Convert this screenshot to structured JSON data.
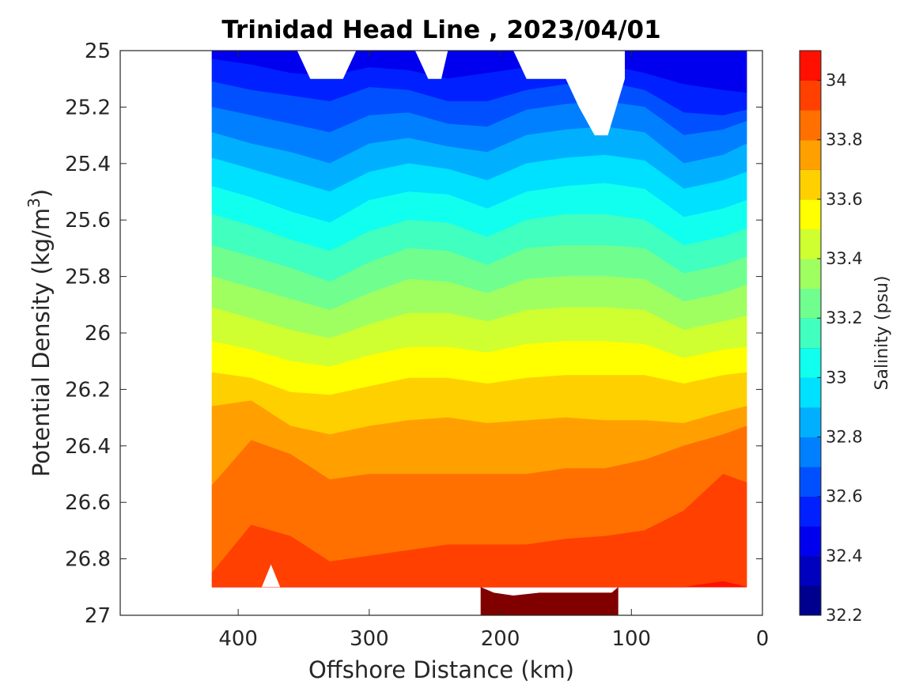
{
  "chart_data": {
    "type": "contour",
    "title": "Trinidad Head Line , 2023/04/01",
    "xlabel": "Offshore Distance (km)",
    "ylabel": "Potential Density (kg/m",
    "ylabel_superscript": "3",
    "ylabel_close": ")",
    "xlim": [
      490,
      0
    ],
    "x_reversed": true,
    "ylim": [
      25,
      27
    ],
    "y_reversed": true,
    "x_ticks": [
      400,
      300,
      200,
      100,
      0
    ],
    "x_tick_labels": [
      "400",
      "300",
      "200",
      "100",
      "0"
    ],
    "y_ticks": [
      25,
      25.2,
      25.4,
      25.6,
      25.8,
      26,
      26.2,
      26.4,
      26.6,
      26.8,
      27
    ],
    "y_tick_labels": [
      "25",
      "25.2",
      "25.4",
      "25.6",
      "25.8",
      "26",
      "26.2",
      "26.4",
      "26.6",
      "26.8",
      "27"
    ],
    "grid": false,
    "colorbar": {
      "label": "Salinity (psu)",
      "range": [
        32.2,
        34.1
      ],
      "levels": [
        32.2,
        32.3,
        32.4,
        32.5,
        32.6,
        32.7,
        32.8,
        32.9,
        33.0,
        33.1,
        33.2,
        33.3,
        33.4,
        33.5,
        33.6,
        33.7,
        33.8,
        33.9,
        34.0,
        34.1
      ],
      "tick_values": [
        32.2,
        32.4,
        32.6,
        32.8,
        33,
        33.2,
        33.4,
        33.6,
        33.8,
        34
      ],
      "tick_labels": [
        "32.2",
        "32.4",
        "32.6",
        "32.8",
        "33",
        "33.2",
        "33.4",
        "33.6",
        "33.8",
        "34"
      ],
      "colors": [
        "#00008f",
        "#0000bf",
        "#0000ef",
        "#0020ff",
        "#0050ff",
        "#0080ff",
        "#00b0ff",
        "#00e0ff",
        "#10ffef",
        "#40ffbf",
        "#70ff8f",
        "#a0ff60",
        "#cfff30",
        "#ffff00",
        "#ffd000",
        "#ffa000",
        "#ff7000",
        "#ff4000",
        "#ff1000",
        "#df0000",
        "#af0000",
        "#800000"
      ]
    },
    "data_x_range": [
      420,
      12
    ],
    "data_y_range": [
      25,
      26.9
    ],
    "stations_x": [
      420,
      390,
      360,
      330,
      300,
      270,
      240,
      210,
      180,
      150,
      120,
      90,
      60,
      30,
      12
    ],
    "boundaries": [
      {
        "upper": 32.3,
        "depth": [
          25.0,
          25.0,
          25.0,
          25.0,
          25.0,
          25.0,
          25.0,
          25.0,
          25.0,
          25.0,
          25.0,
          25.0,
          25.0,
          25.0,
          25.0
        ]
      },
      {
        "upper": 32.4,
        "depth": [
          25.0,
          25.0,
          25.0,
          25.0,
          25.0,
          25.0,
          25.0,
          25.0,
          25.0,
          25.0,
          25.0,
          25.0,
          25.0,
          25.0,
          25.0
        ]
      },
      {
        "upper": 32.5,
        "depth": [
          25.03,
          25.05,
          25.08,
          25.09,
          25.06,
          25.07,
          25.1,
          25.08,
          25.06,
          25.05,
          25.05,
          25.08,
          25.12,
          25.14,
          25.15
        ]
      },
      {
        "upper": 32.6,
        "depth": [
          25.11,
          25.14,
          25.16,
          25.18,
          25.13,
          25.14,
          25.18,
          25.18,
          25.14,
          25.12,
          25.11,
          25.14,
          25.22,
          25.23,
          25.21
        ]
      },
      {
        "upper": 32.7,
        "depth": [
          25.2,
          25.23,
          25.26,
          25.29,
          25.23,
          25.22,
          25.26,
          25.27,
          25.21,
          25.19,
          25.18,
          25.2,
          25.3,
          25.28,
          25.25
        ]
      },
      {
        "upper": 32.8,
        "depth": [
          25.29,
          25.33,
          25.36,
          25.4,
          25.33,
          25.31,
          25.34,
          25.36,
          25.3,
          25.28,
          25.27,
          25.29,
          25.4,
          25.37,
          25.33
        ]
      },
      {
        "upper": 32.9,
        "depth": [
          25.38,
          25.42,
          25.46,
          25.5,
          25.43,
          25.4,
          25.42,
          25.46,
          25.4,
          25.38,
          25.37,
          25.39,
          25.49,
          25.46,
          25.43
        ]
      },
      {
        "upper": 33.0,
        "depth": [
          25.48,
          25.52,
          25.57,
          25.61,
          25.53,
          25.5,
          25.51,
          25.56,
          25.5,
          25.48,
          25.47,
          25.49,
          25.59,
          25.56,
          25.53
        ]
      },
      {
        "upper": 33.1,
        "depth": [
          25.58,
          25.62,
          25.67,
          25.71,
          25.64,
          25.6,
          25.61,
          25.66,
          25.6,
          25.58,
          25.58,
          25.6,
          25.69,
          25.66,
          25.63
        ]
      },
      {
        "upper": 33.2,
        "depth": [
          25.69,
          25.73,
          25.77,
          25.82,
          25.75,
          25.7,
          25.71,
          25.76,
          25.7,
          25.69,
          25.69,
          25.7,
          25.79,
          25.76,
          25.73
        ]
      },
      {
        "upper": 33.3,
        "depth": [
          25.8,
          25.84,
          25.88,
          25.92,
          25.86,
          25.81,
          25.82,
          25.86,
          25.81,
          25.8,
          25.8,
          25.81,
          25.89,
          25.86,
          25.83
        ]
      },
      {
        "upper": 33.4,
        "depth": [
          25.91,
          25.95,
          25.99,
          26.02,
          25.97,
          25.93,
          25.93,
          25.96,
          25.92,
          25.91,
          25.91,
          25.92,
          25.99,
          25.96,
          25.94
        ]
      },
      {
        "upper": 33.5,
        "depth": [
          26.03,
          26.06,
          26.1,
          26.12,
          26.08,
          26.05,
          26.05,
          26.07,
          26.04,
          26.03,
          26.03,
          26.04,
          26.09,
          26.06,
          26.05
        ]
      },
      {
        "upper": 33.6,
        "depth": [
          26.14,
          26.16,
          26.21,
          26.22,
          26.19,
          26.16,
          26.16,
          26.18,
          26.16,
          26.15,
          26.15,
          26.15,
          26.18,
          26.15,
          26.14
        ]
      },
      {
        "upper": 33.7,
        "depth": [
          26.26,
          26.24,
          26.33,
          26.36,
          26.33,
          26.31,
          26.3,
          26.32,
          26.31,
          26.3,
          26.31,
          26.31,
          26.32,
          26.28,
          26.26
        ]
      },
      {
        "upper": 33.8,
        "depth": [
          26.54,
          26.38,
          26.43,
          26.52,
          26.5,
          26.5,
          26.5,
          26.5,
          26.5,
          26.48,
          26.48,
          26.45,
          26.4,
          26.36,
          26.33
        ]
      },
      {
        "upper": 33.9,
        "depth": [
          26.85,
          26.68,
          26.72,
          26.81,
          26.79,
          26.77,
          26.75,
          26.75,
          26.75,
          26.73,
          26.72,
          26.7,
          26.63,
          26.5,
          26.53
        ]
      },
      {
        "upper": 34.0,
        "depth": [
          26.9,
          26.9,
          26.9,
          26.9,
          26.9,
          26.9,
          26.9,
          26.9,
          26.9,
          26.9,
          26.9,
          26.9,
          26.9,
          26.88,
          26.9
        ]
      }
    ],
    "blank_regions": [
      {
        "x": [
          355,
          345,
          320,
          310
        ],
        "y": [
          25.0,
          25.1,
          25.1,
          25.0
        ]
      },
      {
        "x": [
          265,
          255,
          245,
          240
        ],
        "y": [
          25.0,
          25.1,
          25.1,
          25.0
        ]
      },
      {
        "x": [
          190,
          180,
          150,
          140,
          128,
          118,
          105,
          105
        ],
        "y": [
          25.0,
          25.1,
          25.1,
          25.2,
          25.3,
          25.3,
          25.1,
          25.0
        ]
      },
      {
        "x": [
          382,
          375,
          368
        ],
        "y": [
          26.9,
          26.82,
          26.9
        ]
      }
    ],
    "dense_region": {
      "x": [
        215,
        205,
        190,
        170,
        150,
        130,
        115,
        110
      ],
      "y_bottom": 27.0,
      "top": [
        26.9,
        26.92,
        26.93,
        26.92,
        26.92,
        26.92,
        26.92,
        26.9
      ],
      "value": 34.1
    }
  }
}
